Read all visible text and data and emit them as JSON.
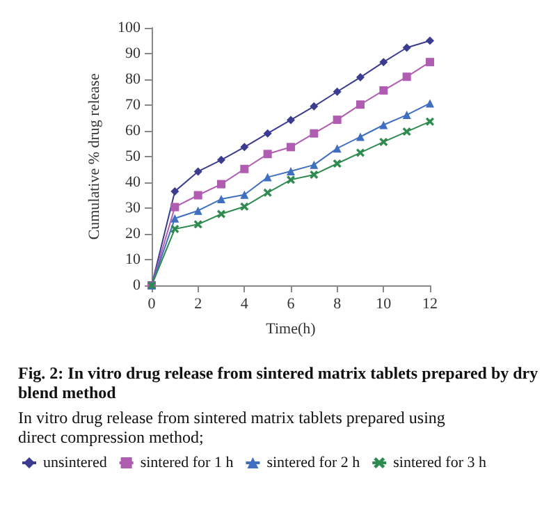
{
  "chart_data": {
    "type": "line",
    "title": "Fig. 2: In vitro drug release from sintered matrix tablets prepared by dry blend method",
    "annotations": [
      "In vitro drug release from sintered matrix tablets prepared using direct compression method;"
    ],
    "xlabel": "Time(h)",
    "ylabel": "Cumulative % drug release",
    "x": [
      0,
      1,
      2,
      3,
      4,
      5,
      6,
      7,
      8,
      9,
      10,
      11,
      12
    ],
    "series": [
      {
        "name": "unsintered",
        "color": "#3b3b8f",
        "marker": "diamond",
        "values": [
          0,
          36.5,
          44.2,
          48.7,
          53.7,
          59,
          64.2,
          69.5,
          75.2,
          80.8,
          86.7,
          92.3,
          95
        ]
      },
      {
        "name": "sintered for 1 h",
        "color": "#b05cb0",
        "marker": "square",
        "values": [
          0,
          30.4,
          35,
          39.3,
          45.2,
          51,
          53.7,
          59,
          64.3,
          70.2,
          75.7,
          81,
          86.7
        ]
      },
      {
        "name": "sintered for 2 h",
        "color": "#3f6fc0",
        "marker": "triangle",
        "values": [
          0,
          26,
          29,
          33.5,
          35.2,
          42,
          44.3,
          46.8,
          53.2,
          57.7,
          62.3,
          66.2,
          70.7
        ]
      },
      {
        "name": "sintered for 3 h",
        "color": "#2e8b4f",
        "marker": "cross",
        "values": [
          0,
          21.9,
          23.7,
          27.7,
          30.6,
          36,
          41,
          43,
          47.3,
          51.5,
          55.7,
          59.7,
          63.6
        ]
      }
    ],
    "xlim": [
      0,
      12
    ],
    "xticks": [
      0,
      2,
      4,
      6,
      8,
      10,
      12
    ],
    "ylim": [
      0,
      100
    ],
    "yticks": [
      0,
      10,
      20,
      30,
      40,
      50,
      60,
      70,
      80,
      90,
      100
    ],
    "grid": false,
    "legend": "bottom",
    "line_style": "solid"
  }
}
